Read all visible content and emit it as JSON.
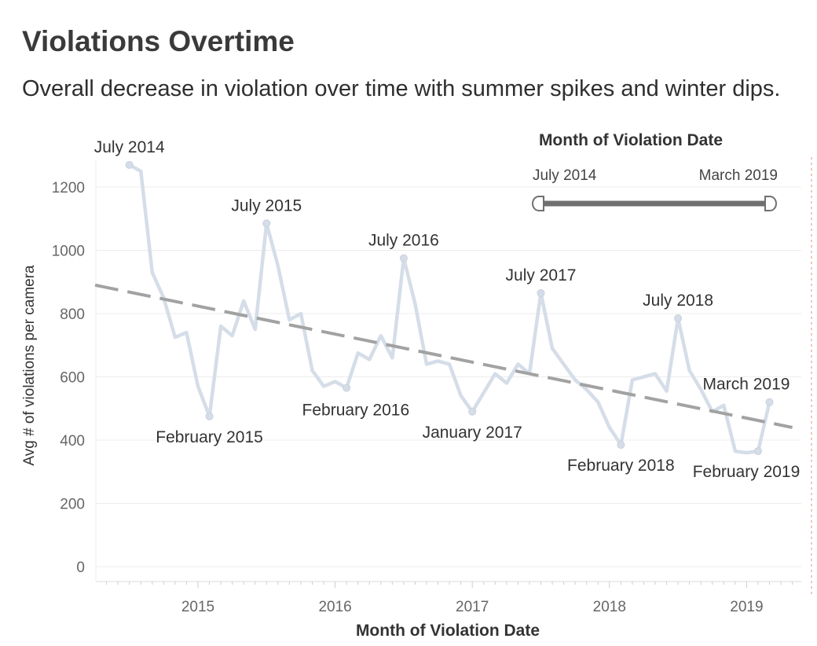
{
  "title": "Violations Overtime",
  "subtitle": "Overall decrease in violation over time with summer spikes and winter dips.",
  "filter": {
    "title": "Month of Violation Date",
    "start_label": "July 2014",
    "end_label": "March 2019"
  },
  "colors": {
    "line": "#d5dde8",
    "trend": "#a2a2a2",
    "grid": "#ececec",
    "text": "#333333",
    "slider": "#707070"
  },
  "chart_data": {
    "type": "line",
    "xlabel": "Month of Violation Date",
    "ylabel": "Avg # of violations per camera",
    "ylim": [
      0,
      1300
    ],
    "yticks": [
      0,
      200,
      400,
      600,
      800,
      1000,
      1200
    ],
    "xticks": [
      "2015",
      "2016",
      "2017",
      "2018",
      "2019"
    ],
    "grid": true,
    "series": [
      {
        "points": [
          [
            "2014-07",
            1270
          ],
          [
            "2014-08",
            1250
          ],
          [
            "2014-09",
            930
          ],
          [
            "2014-10",
            850
          ],
          [
            "2014-11",
            725
          ],
          [
            "2014-12",
            740
          ],
          [
            "2015-01",
            570
          ],
          [
            "2015-02",
            475
          ],
          [
            "2015-03",
            760
          ],
          [
            "2015-04",
            730
          ],
          [
            "2015-05",
            840
          ],
          [
            "2015-06",
            750
          ],
          [
            "2015-07",
            1085
          ],
          [
            "2015-08",
            950
          ],
          [
            "2015-09",
            780
          ],
          [
            "2015-10",
            800
          ],
          [
            "2015-11",
            620
          ],
          [
            "2015-12",
            570
          ],
          [
            "2016-01",
            585
          ],
          [
            "2016-02",
            565
          ],
          [
            "2016-03",
            675
          ],
          [
            "2016-04",
            655
          ],
          [
            "2016-05",
            730
          ],
          [
            "2016-06",
            660
          ],
          [
            "2016-07",
            975
          ],
          [
            "2016-08",
            830
          ],
          [
            "2016-09",
            640
          ],
          [
            "2016-10",
            650
          ],
          [
            "2016-11",
            640
          ],
          [
            "2016-12",
            540
          ],
          [
            "2017-01",
            490
          ],
          [
            "2017-02",
            550
          ],
          [
            "2017-03",
            610
          ],
          [
            "2017-04",
            580
          ],
          [
            "2017-05",
            640
          ],
          [
            "2017-06",
            610
          ],
          [
            "2017-07",
            865
          ],
          [
            "2017-08",
            690
          ],
          [
            "2017-09",
            640
          ],
          [
            "2017-10",
            590
          ],
          [
            "2017-11",
            560
          ],
          [
            "2017-12",
            520
          ],
          [
            "2018-01",
            440
          ],
          [
            "2018-02",
            385
          ],
          [
            "2018-03",
            590
          ],
          [
            "2018-04",
            600
          ],
          [
            "2018-05",
            610
          ],
          [
            "2018-06",
            555
          ],
          [
            "2018-07",
            785
          ],
          [
            "2018-08",
            620
          ],
          [
            "2018-09",
            560
          ],
          [
            "2018-10",
            490
          ],
          [
            "2018-11",
            510
          ],
          [
            "2018-12",
            365
          ],
          [
            "2019-01",
            360
          ],
          [
            "2019-02",
            365
          ],
          [
            "2019-03",
            520
          ]
        ]
      }
    ],
    "trend_line": {
      "style": "dashed",
      "start": [
        "2014-04",
        890
      ],
      "end": [
        "2019-05",
        440
      ]
    },
    "annotations": [
      {
        "label": "July 2014",
        "x": "2014-07",
        "y": 1270,
        "position": "above"
      },
      {
        "label": "July 2015",
        "x": "2015-07",
        "y": 1085,
        "position": "above"
      },
      {
        "label": "July 2016",
        "x": "2016-07",
        "y": 975,
        "position": "above"
      },
      {
        "label": "July 2017",
        "x": "2017-07",
        "y": 865,
        "position": "above"
      },
      {
        "label": "July 2018",
        "x": "2018-07",
        "y": 785,
        "position": "above"
      },
      {
        "label": "March 2019",
        "x": "2019-03",
        "y": 520,
        "position": "above"
      },
      {
        "label": "February 2015",
        "x": "2015-02",
        "y": 475,
        "position": "below"
      },
      {
        "label": "February 2016",
        "x": "2016-02",
        "y": 565,
        "position": "left"
      },
      {
        "label": "January 2017",
        "x": "2017-01",
        "y": 490,
        "position": "below"
      },
      {
        "label": "February 2018",
        "x": "2018-02",
        "y": 385,
        "position": "below"
      },
      {
        "label": "February 2019",
        "x": "2019-02",
        "y": 365,
        "position": "below"
      }
    ]
  }
}
